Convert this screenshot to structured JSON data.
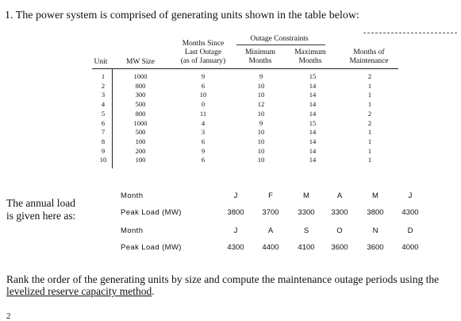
{
  "question": "1. The power system is comprised of generating units shown in the table below:",
  "unit_table": {
    "group_header": "Outage Constraints",
    "headers": [
      "Unit",
      "MW Size",
      "Months Since Last Outage (as of January)",
      "Minimum Months",
      "Maximum Months",
      "Months of Maintenance"
    ],
    "header_lines": {
      "months_since": [
        "Months Since",
        "Last Outage",
        "(as of January)"
      ],
      "minimum": [
        "Minimum",
        "Months"
      ],
      "maximum": [
        "Maximum",
        "Months"
      ],
      "maintenance": [
        "Months of",
        "Maintenance"
      ]
    },
    "rows": [
      [
        "1",
        "1000",
        "9",
        "9",
        "15",
        "2"
      ],
      [
        "2",
        "800",
        "6",
        "10",
        "14",
        "1"
      ],
      [
        "3",
        "300",
        "10",
        "10",
        "14",
        "1"
      ],
      [
        "4",
        "500",
        "0",
        "12",
        "14",
        "1"
      ],
      [
        "5",
        "800",
        "11",
        "10",
        "14",
        "2"
      ],
      [
        "6",
        "1000",
        "4",
        "9",
        "15",
        "2"
      ],
      [
        "7",
        "500",
        "3",
        "10",
        "14",
        "1"
      ],
      [
        "8",
        "100",
        "6",
        "10",
        "14",
        "1"
      ],
      [
        "9",
        "200",
        "9",
        "10",
        "14",
        "1"
      ],
      [
        "10",
        "100",
        "6",
        "10",
        "14",
        "1"
      ]
    ]
  },
  "load_label": [
    "The annual load",
    "is given here as:"
  ],
  "load_table": {
    "month_label": "Month",
    "peak_label": "Peak Load (MW)",
    "row1_months": [
      "J",
      "F",
      "M",
      "A",
      "M",
      "J"
    ],
    "row1_loads": [
      "3800",
      "3700",
      "3300",
      "3300",
      "3800",
      "4300"
    ],
    "row2_months": [
      "J",
      "A",
      "S",
      "O",
      "N",
      "D"
    ],
    "row2_loads": [
      "4300",
      "4400",
      "4100",
      "3600",
      "3600",
      "4000"
    ]
  },
  "rank_text": "Rank the order of the generating units by size and compute the maintenance outage periods using the",
  "rank_link": "levelized reserve capacity method",
  "rank_end": ".",
  "next_num": "2"
}
